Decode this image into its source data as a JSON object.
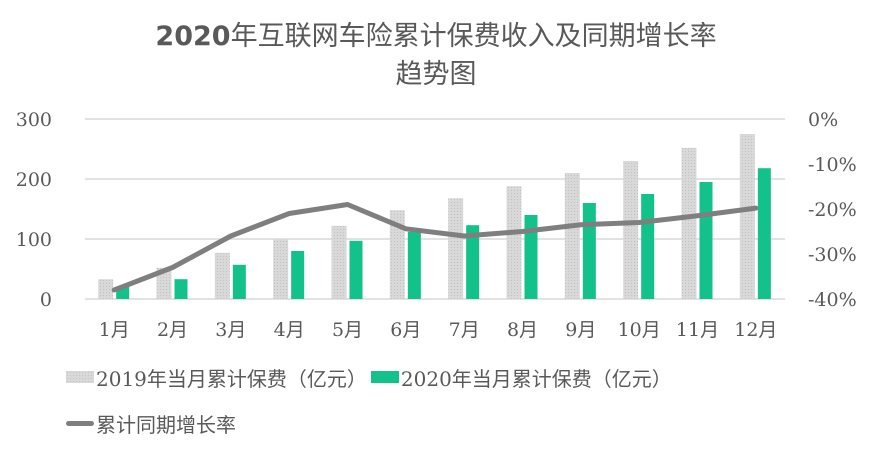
{
  "title": {
    "line1_year": "2020",
    "line1_rest": "年互联网车险累计保费收入及同期增长率",
    "line2": "趋势图"
  },
  "colors": {
    "series_2019": "#d9d9d9",
    "series_2020": "#13c28a",
    "growth_line": "#7f7f7f",
    "gridline": "#d9d9d9",
    "text": "#595959"
  },
  "legend": {
    "items": [
      {
        "label": "2019年当月累计保费（亿元）",
        "type": "bar",
        "color": "#d9d9d9"
      },
      {
        "label": "2020年当月累计保费（亿元）",
        "type": "bar",
        "color": "#13c28a"
      },
      {
        "label": "累计同期增长率",
        "type": "line",
        "color": "#7f7f7f"
      }
    ]
  },
  "chart_data": {
    "type": "bar+line",
    "title": "2020年互联网车险累计保费收入及同期增长率趋势图",
    "categories": [
      "1月",
      "2月",
      "3月",
      "4月",
      "5月",
      "6月",
      "7月",
      "8月",
      "9月",
      "10月",
      "11月",
      "12月"
    ],
    "series": [
      {
        "name": "2019年当月累计保费（亿元）",
        "type": "bar",
        "axis": "left",
        "values": [
          33,
          52,
          77,
          100,
          122,
          148,
          168,
          188,
          210,
          230,
          252,
          275
        ]
      },
      {
        "name": "2020年当月累计保费（亿元）",
        "type": "bar",
        "axis": "left",
        "values": [
          21,
          33,
          57,
          80,
          97,
          112,
          123,
          140,
          160,
          175,
          195,
          218
        ]
      },
      {
        "name": "累计同期增长率",
        "type": "line",
        "axis": "right",
        "values": [
          -38,
          -33,
          -26,
          -21,
          -19,
          -24.4,
          -26,
          -25,
          -23.5,
          -23,
          -21.5,
          -19.8
        ]
      }
    ],
    "left_axis": {
      "ylim": [
        0,
        300
      ],
      "ticks": [
        "0",
        "100",
        "200",
        "300"
      ],
      "tick_values": [
        0,
        100,
        200,
        300
      ]
    },
    "right_axis": {
      "ylim": [
        -40,
        0
      ],
      "ticks": [
        "-40%",
        "-30%",
        "-20%",
        "-10%",
        "0%"
      ],
      "tick_values": [
        -40,
        -30,
        -20,
        -10,
        0
      ]
    },
    "xlabel": "",
    "ylabel": "",
    "grid": true,
    "legend_position": "bottom"
  }
}
